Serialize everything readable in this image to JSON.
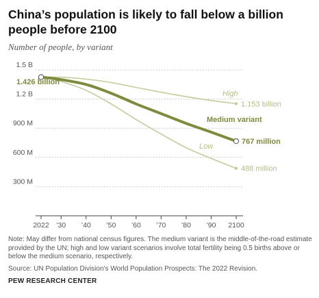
{
  "chart_data": {
    "type": "line",
    "title": "China’s population is likely to fall below a billion people before 2100",
    "subtitle": "Number of people, by variant",
    "x_ticks": [
      "2022",
      "’30",
      "’40",
      "’50",
      "’60",
      "’70",
      "’80",
      "’90",
      "2100"
    ],
    "x_tick_values": [
      2022,
      2030,
      2040,
      2050,
      2060,
      2070,
      2080,
      2090,
      2100
    ],
    "xlim": [
      2022,
      2100
    ],
    "y_ticks": [
      "300 M",
      "600 M",
      "900 M",
      "1.2 B",
      "1.5 B"
    ],
    "y_tick_values": [
      300,
      600,
      900,
      1200,
      1500
    ],
    "ylim": [
      0,
      1500
    ],
    "y_unit": "millions",
    "grid": "horizontal dotted",
    "series": [
      {
        "name": "High",
        "color": "#c3cc9a",
        "x": [
          2022,
          2030,
          2040,
          2050,
          2060,
          2070,
          2080,
          2090,
          2100
        ],
        "values": [
          1426,
          1425,
          1405,
          1370,
          1320,
          1270,
          1225,
          1185,
          1153
        ],
        "end_label": "1.153 billion"
      },
      {
        "name": "Medium variant",
        "color": "#7d8c3c",
        "x": [
          2022,
          2030,
          2040,
          2050,
          2060,
          2070,
          2080,
          2090,
          2100
        ],
        "values": [
          1426,
          1400,
          1350,
          1260,
          1150,
          1050,
          950,
          860,
          767
        ],
        "end_label": "767 million",
        "start_label": "1.426 billion"
      },
      {
        "name": "Low",
        "color": "#c3cc9a",
        "x": [
          2022,
          2030,
          2040,
          2050,
          2060,
          2070,
          2080,
          2090,
          2100
        ],
        "values": [
          1426,
          1380,
          1290,
          1150,
          990,
          840,
          700,
          590,
          488
        ],
        "end_label": "488 million"
      }
    ]
  },
  "note": "Note: May differ from national census figures. The medium variant is the middle-of-the-road estimate provided by the UN; high and low variant scenarios involve total fertility being 0.5 births above or below the medium scenario, respectively.",
  "source": "Source: UN Population Division’s World Population Prospects: The 2022 Revision.",
  "brand": "PEW RESEARCH CENTER"
}
